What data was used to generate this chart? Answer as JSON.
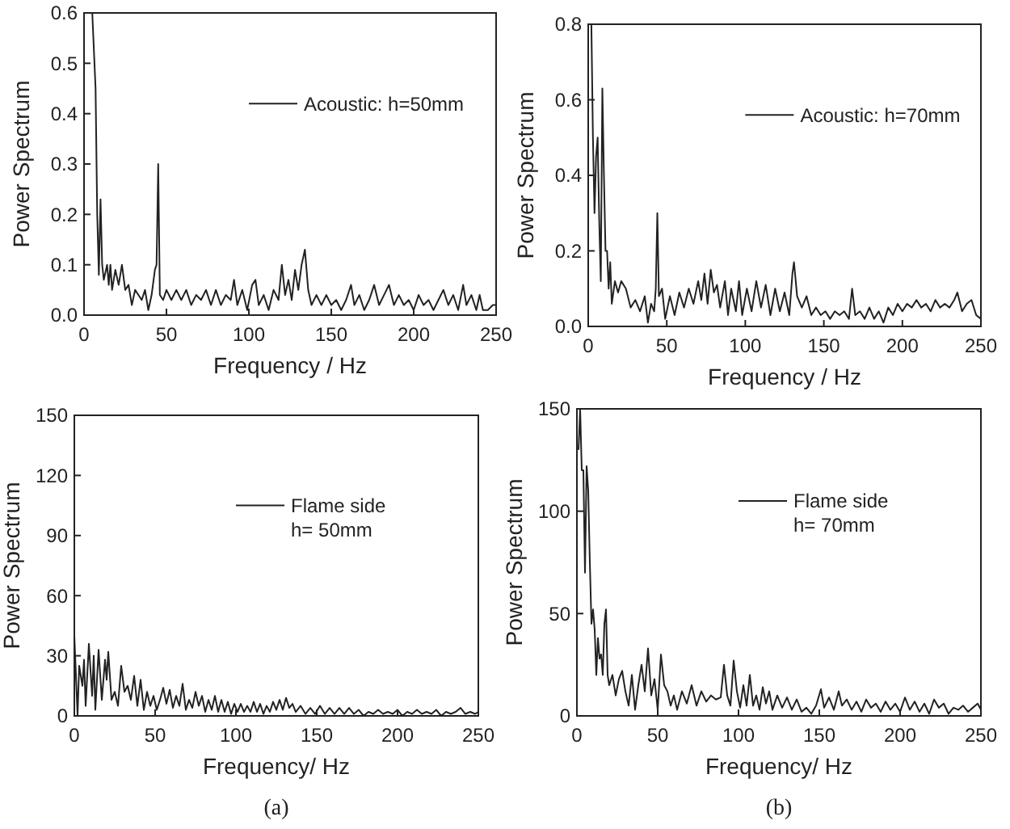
{
  "chart_data": [
    {
      "type": "line",
      "xlabel": "Frequency / Hz",
      "ylabel": "Power Spectrum",
      "xlim": [
        0,
        250
      ],
      "ylim": [
        0,
        0.6
      ],
      "xticks": [
        0,
        50,
        100,
        150,
        200,
        250
      ],
      "yticks": [
        {
          "value": 0,
          "label": "0.0"
        },
        0.1,
        0.2,
        0.3,
        0.4,
        0.5,
        0.6
      ],
      "legend": "top right",
      "grid": false,
      "series": [
        {
          "name": "Acoustic: h=50mm",
          "color": "#222222",
          "x": [
            5,
            7,
            8,
            9,
            10,
            11,
            12,
            14,
            15,
            16,
            17,
            19,
            21,
            23,
            25,
            27,
            29,
            31,
            33,
            35,
            37,
            39,
            41,
            43,
            44,
            45,
            46,
            48,
            50,
            53,
            56,
            59,
            62,
            65,
            68,
            71,
            74,
            77,
            80,
            83,
            86,
            89,
            91,
            93,
            96,
            99,
            102,
            104,
            106,
            109,
            112,
            115,
            118,
            120,
            122,
            124,
            126,
            128,
            130,
            132,
            134,
            136,
            138,
            141,
            144,
            147,
            150,
            153,
            156,
            159,
            162,
            164,
            167,
            170,
            173,
            176,
            179,
            182,
            185,
            188,
            191,
            194,
            197,
            200,
            203,
            206,
            209,
            212,
            215,
            218,
            221,
            224,
            227,
            230,
            232,
            235,
            238,
            240,
            242,
            245,
            248,
            250
          ],
          "values": [
            0.6,
            0.45,
            0.2,
            0.08,
            0.23,
            0.1,
            0.07,
            0.1,
            0.06,
            0.1,
            0.05,
            0.09,
            0.06,
            0.1,
            0.05,
            0.06,
            0.02,
            0.05,
            0.04,
            0.03,
            0.05,
            0.01,
            0.04,
            0.09,
            0.1,
            0.3,
            0.04,
            0.03,
            0.05,
            0.03,
            0.05,
            0.03,
            0.05,
            0.02,
            0.04,
            0.03,
            0.05,
            0.02,
            0.05,
            0.02,
            0.04,
            0.03,
            0.07,
            0.02,
            0.05,
            0.01,
            0.06,
            0.07,
            0.02,
            0.04,
            0.01,
            0.05,
            0.03,
            0.1,
            0.04,
            0.07,
            0.03,
            0.09,
            0.05,
            0.1,
            0.13,
            0.05,
            0.02,
            0.04,
            0.02,
            0.04,
            0.02,
            0.03,
            0.01,
            0.03,
            0.06,
            0.02,
            0.04,
            0.01,
            0.03,
            0.06,
            0.02,
            0.04,
            0.06,
            0.02,
            0.04,
            0.02,
            0.03,
            0.01,
            0.04,
            0.02,
            0.03,
            0.01,
            0.03,
            0.05,
            0.02,
            0.04,
            0.01,
            0.06,
            0.02,
            0.04,
            0.01,
            0.04,
            0.01,
            0.01,
            0.02,
            0.02
          ]
        }
      ]
    },
    {
      "type": "line",
      "xlabel": "Frequency / Hz",
      "ylabel": "Power Spectrum",
      "xlim": [
        0,
        250
      ],
      "ylim": [
        0,
        0.8
      ],
      "xticks": [
        0,
        50,
        100,
        150,
        200,
        250
      ],
      "yticks": [
        {
          "value": 0,
          "label": "0.0"
        },
        0.2,
        0.4,
        0.6,
        0.8
      ],
      "legend": "top right",
      "grid": false,
      "series": [
        {
          "name": "Acoustic: h=70mm",
          "color": "#222222",
          "x": [
            2,
            3,
            4,
            5,
            6,
            7,
            8,
            9,
            10,
            11,
            12,
            13,
            14,
            15,
            17,
            19,
            21,
            24,
            27,
            30,
            33,
            36,
            38,
            40,
            42,
            43,
            44,
            45,
            47,
            49,
            52,
            55,
            58,
            61,
            64,
            67,
            70,
            72,
            74,
            76,
            78,
            80,
            82,
            84,
            87,
            89,
            91,
            94,
            96,
            98,
            101,
            104,
            107,
            110,
            113,
            116,
            119,
            122,
            125,
            128,
            130,
            131,
            133,
            136,
            139,
            142,
            145,
            148,
            151,
            154,
            157,
            160,
            163,
            166,
            168,
            170,
            173,
            176,
            179,
            182,
            185,
            188,
            191,
            194,
            197,
            200,
            203,
            206,
            209,
            212,
            215,
            218,
            221,
            224,
            227,
            230,
            233,
            235,
            238,
            241,
            244,
            247,
            250
          ],
          "values": [
            0.8,
            0.5,
            0.3,
            0.45,
            0.5,
            0.28,
            0.12,
            0.63,
            0.4,
            0.2,
            0.2,
            0.1,
            0.17,
            0.06,
            0.12,
            0.09,
            0.12,
            0.1,
            0.05,
            0.07,
            0.04,
            0.08,
            0.01,
            0.06,
            0.04,
            0.1,
            0.3,
            0.08,
            0.1,
            0.02,
            0.08,
            0.03,
            0.09,
            0.05,
            0.1,
            0.06,
            0.12,
            0.07,
            0.14,
            0.06,
            0.15,
            0.09,
            0.11,
            0.05,
            0.12,
            0.03,
            0.1,
            0.04,
            0.12,
            0.03,
            0.1,
            0.04,
            0.12,
            0.05,
            0.11,
            0.03,
            0.1,
            0.04,
            0.09,
            0.03,
            0.14,
            0.17,
            0.08,
            0.05,
            0.08,
            0.03,
            0.05,
            0.03,
            0.04,
            0.02,
            0.04,
            0.03,
            0.04,
            0.02,
            0.1,
            0.03,
            0.04,
            0.02,
            0.05,
            0.02,
            0.04,
            0.01,
            0.05,
            0.03,
            0.06,
            0.04,
            0.06,
            0.05,
            0.07,
            0.05,
            0.06,
            0.04,
            0.07,
            0.05,
            0.06,
            0.05,
            0.07,
            0.09,
            0.04,
            0.06,
            0.07,
            0.03,
            0.02
          ]
        }
      ]
    },
    {
      "type": "line",
      "xlabel": "Frequency/ Hz",
      "ylabel": "Power Spectrum",
      "xlim": [
        0,
        250
      ],
      "ylim": [
        0,
        150
      ],
      "xticks": [
        0,
        50,
        100,
        150,
        200,
        250
      ],
      "yticks": [
        0,
        30,
        60,
        90,
        120,
        150
      ],
      "legend": "top right",
      "grid": false,
      "annotations": [
        "(a)"
      ],
      "series": [
        {
          "name": "Flame side\nh= 50mm",
          "color": "#222222",
          "x": [
            0,
            1,
            2,
            3,
            5,
            6,
            7,
            9,
            11,
            12,
            13,
            15,
            17,
            19,
            20,
            21,
            23,
            25,
            27,
            29,
            31,
            33,
            35,
            37,
            39,
            41,
            43,
            45,
            47,
            49,
            51,
            53,
            55,
            57,
            59,
            61,
            63,
            65,
            67,
            69,
            71,
            73,
            75,
            77,
            79,
            81,
            83,
            85,
            87,
            89,
            91,
            93,
            95,
            97,
            99,
            101,
            103,
            105,
            107,
            109,
            111,
            113,
            115,
            117,
            119,
            121,
            123,
            125,
            127,
            129,
            131,
            133,
            135,
            137,
            140,
            143,
            146,
            149,
            152,
            155,
            158,
            161,
            164,
            167,
            170,
            173,
            176,
            179,
            182,
            185,
            188,
            191,
            194,
            197,
            200,
            203,
            206,
            209,
            212,
            215,
            218,
            221,
            224,
            227,
            230,
            233,
            236,
            239,
            242,
            245,
            248,
            250
          ],
          "values": [
            40,
            20,
            0,
            25,
            15,
            28,
            5,
            36,
            10,
            30,
            3,
            33,
            8,
            28,
            18,
            32,
            8,
            12,
            5,
            25,
            12,
            15,
            8,
            20,
            5,
            18,
            3,
            12,
            5,
            10,
            3,
            8,
            14,
            6,
            13,
            4,
            10,
            5,
            16,
            3,
            8,
            4,
            12,
            5,
            10,
            2,
            8,
            3,
            10,
            2,
            8,
            2,
            7,
            1,
            6,
            2,
            6,
            2,
            5,
            2,
            7,
            2,
            6,
            1,
            5,
            2,
            7,
            3,
            8,
            3,
            9,
            4,
            6,
            2,
            5,
            1,
            4,
            1,
            5,
            1,
            4,
            1,
            4,
            1,
            4,
            1,
            3,
            0,
            2,
            1,
            3,
            1,
            2,
            1,
            3,
            0,
            2,
            1,
            3,
            1,
            2,
            1,
            3,
            0,
            2,
            1,
            2,
            4,
            1,
            2,
            1,
            2
          ]
        }
      ]
    },
    {
      "type": "line",
      "xlabel": "Frequency/ Hz",
      "ylabel": "Power Spectrum",
      "xlim": [
        0,
        250
      ],
      "ylim": [
        0,
        150
      ],
      "xticks": [
        0,
        50,
        100,
        150,
        200,
        250
      ],
      "yticks": [
        0,
        50,
        100,
        150
      ],
      "legend": "top right",
      "grid": false,
      "annotations": [
        "(b)"
      ],
      "series": [
        {
          "name": "Flame side\nh= 70mm",
          "color": "#222222",
          "x": [
            1,
            2,
            3,
            4,
            5,
            6,
            7,
            8,
            9,
            10,
            11,
            12,
            13,
            14,
            15,
            16,
            17,
            18,
            19,
            20,
            22,
            24,
            26,
            28,
            30,
            32,
            34,
            36,
            38,
            40,
            42,
            44,
            46,
            48,
            50,
            52,
            54,
            56,
            58,
            60,
            62,
            65,
            68,
            71,
            74,
            77,
            80,
            83,
            86,
            89,
            91,
            93,
            95,
            97,
            99,
            101,
            103,
            105,
            107,
            109,
            111,
            113,
            115,
            117,
            119,
            121,
            124,
            127,
            130,
            133,
            136,
            139,
            142,
            145,
            148,
            151,
            153,
            156,
            159,
            162,
            164,
            167,
            170,
            173,
            176,
            179,
            182,
            185,
            188,
            191,
            194,
            197,
            200,
            203,
            206,
            209,
            212,
            215,
            218,
            221,
            224,
            227,
            230,
            233,
            236,
            239,
            242,
            245,
            248,
            250
          ],
          "values": [
            130,
            150,
            120,
            120,
            70,
            122,
            110,
            75,
            45,
            52,
            42,
            20,
            38,
            28,
            30,
            20,
            45,
            52,
            20,
            15,
            20,
            10,
            18,
            22,
            12,
            5,
            20,
            3,
            15,
            25,
            12,
            33,
            10,
            18,
            3,
            30,
            15,
            12,
            5,
            10,
            3,
            12,
            6,
            15,
            5,
            12,
            7,
            10,
            8,
            9,
            25,
            10,
            5,
            27,
            12,
            4,
            15,
            5,
            20,
            5,
            10,
            3,
            14,
            6,
            12,
            3,
            10,
            4,
            9,
            3,
            8,
            2,
            4,
            1,
            5,
            13,
            4,
            9,
            3,
            12,
            5,
            8,
            3,
            7,
            2,
            8,
            4,
            6,
            2,
            7,
            3,
            6,
            2,
            9,
            3,
            7,
            2,
            6,
            1,
            8,
            4,
            6,
            1,
            4,
            3,
            5,
            2,
            4,
            6,
            3
          ]
        }
      ]
    }
  ]
}
